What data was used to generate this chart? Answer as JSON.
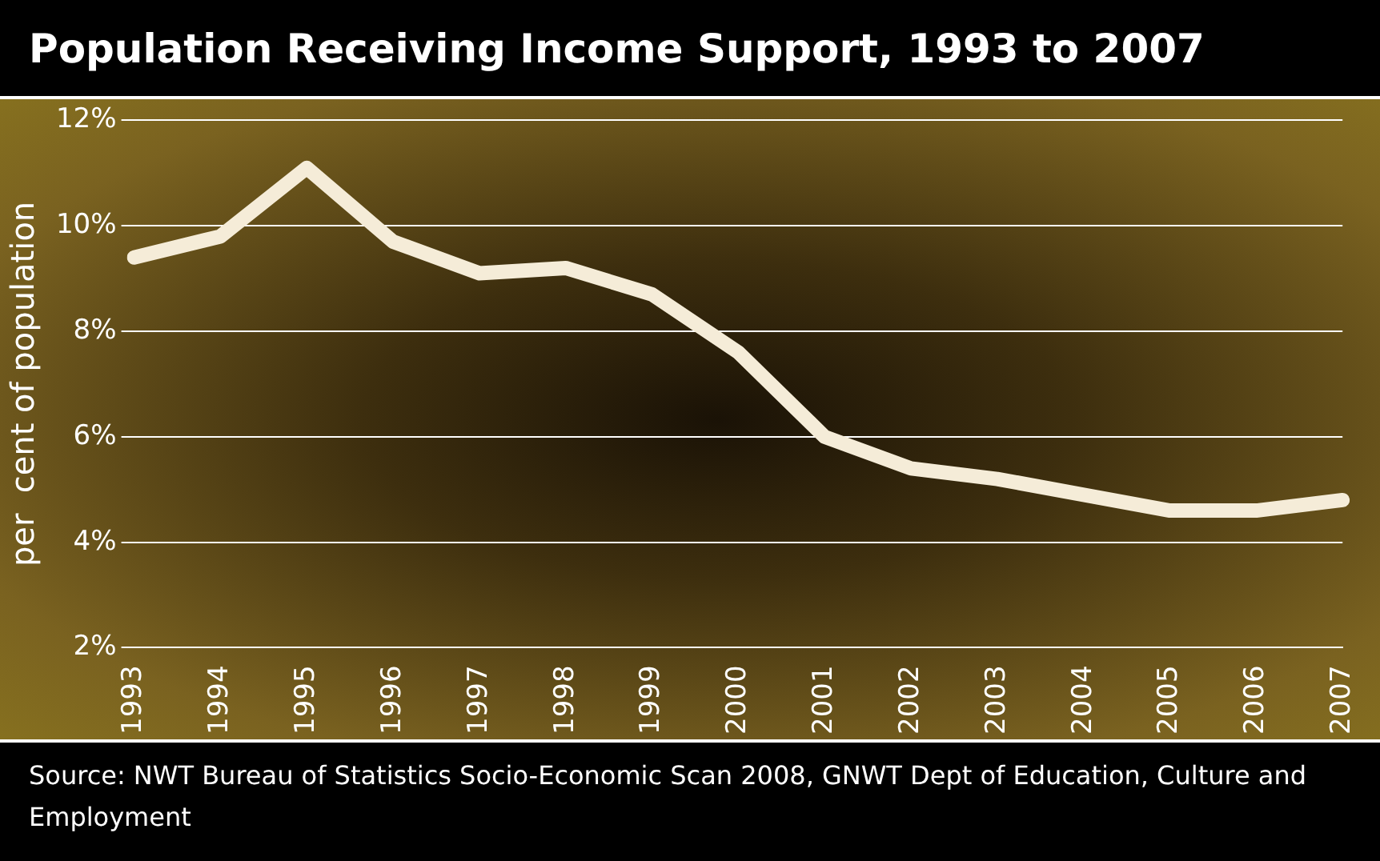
{
  "chart_data": {
    "type": "line",
    "title": "Population Receiving Income Support, 1993 to 2007",
    "ylabel": "per  cent of population",
    "categories": [
      "1993",
      "1994",
      "1995",
      "1996",
      "1997",
      "1998",
      "1999",
      "2000",
      "2001",
      "2002",
      "2003",
      "2004",
      "2005",
      "2006",
      "2007"
    ],
    "series": [
      {
        "color": "#f5ecd8",
        "values": [
          9.4,
          9.8,
          11.1,
          9.7,
          9.1,
          9.2,
          8.7,
          7.6,
          6.0,
          5.4,
          5.2,
          4.9,
          4.6,
          4.6,
          4.8
        ]
      }
    ],
    "ylim": [
      2,
      12
    ],
    "yticks": [
      {
        "value": 2,
        "label": "2%"
      },
      {
        "value": 4,
        "label": "4%"
      },
      {
        "value": 6,
        "label": "6%"
      },
      {
        "value": 8,
        "label": "8%"
      },
      {
        "value": 10,
        "label": "10%"
      },
      {
        "value": 12,
        "label": "12%"
      }
    ],
    "grid": "y",
    "legend": false,
    "marker": "none",
    "line_style": "solid",
    "annotations": [
      "Source: NWT Bureau of Statistics Socio-Economic Scan 2008, GNWT Dept of Education, Culture and Employment"
    ]
  }
}
